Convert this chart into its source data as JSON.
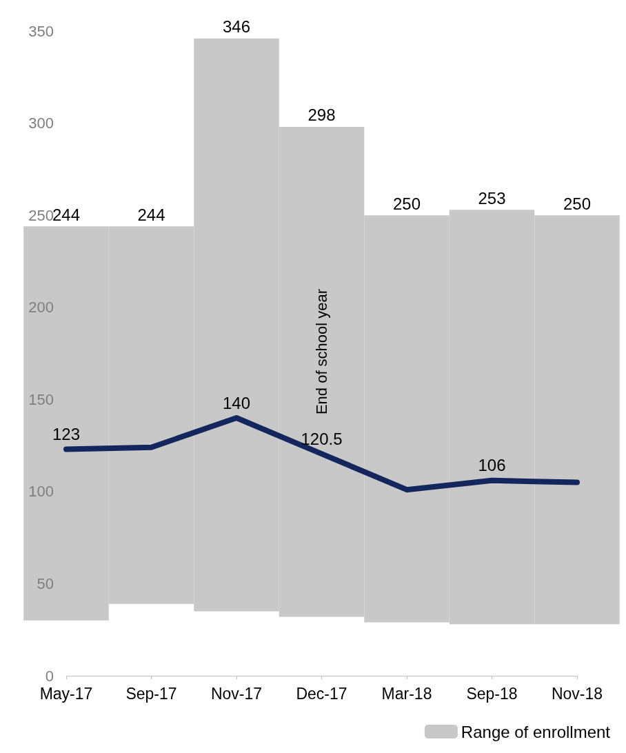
{
  "chart_data": {
    "type": "bar",
    "categories": [
      "May-17",
      "Sep-17",
      "Nov-17",
      "Dec-17",
      "Mar-18",
      "Sep-18",
      "Nov-18"
    ],
    "series": [
      {
        "name": "Range of enrollment",
        "color": "#c8c8c8",
        "base": [
          30,
          39,
          35,
          32,
          29,
          28,
          28
        ],
        "values": [
          214,
          205,
          311,
          266,
          221,
          225,
          222
        ],
        "value_labels": [
          "244",
          "244",
          "346",
          "298",
          "250",
          "253",
          "250"
        ]
      },
      {
        "type": "line",
        "color": "#13275e",
        "values": [
          123,
          124,
          140,
          120.5,
          101,
          106,
          105
        ],
        "value_labels": [
          "123",
          null,
          "140",
          "120.5",
          null,
          "106",
          null
        ]
      }
    ],
    "ylim": [
      0,
      350
    ],
    "yticks": [
      0,
      50,
      100,
      150,
      200,
      250,
      300,
      350
    ],
    "grid": false,
    "legend": "bottom right",
    "marker": "none",
    "line_style": "solid",
    "annotations": [
      "End of school year"
    ]
  }
}
